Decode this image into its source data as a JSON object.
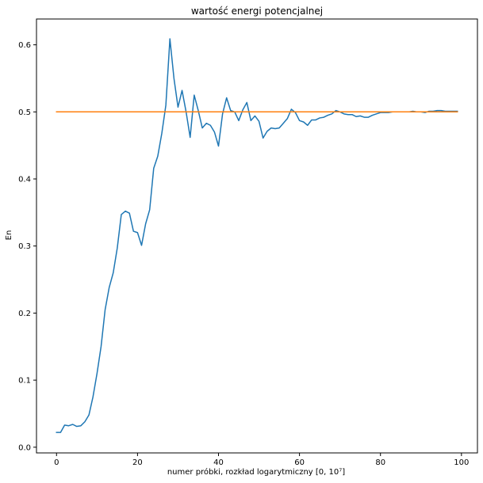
{
  "chart_data": {
    "type": "line",
    "title": "wartość energi potencjalnej",
    "xlabel": "numer próbki, rozkład logarytmiczny [0, 10⁷]",
    "ylabel": "En",
    "xlim": [
      -4.95,
      103.95
    ],
    "ylim": [
      -0.0085,
      0.6385
    ],
    "xticks": [
      0,
      20,
      40,
      60,
      80,
      100
    ],
    "yticks": [
      0.0,
      0.1,
      0.2,
      0.3,
      0.4,
      0.5,
      0.6
    ],
    "grid": false,
    "series": [
      {
        "color": "#1f77b4",
        "x": [
          0,
          1,
          2,
          3,
          4,
          5,
          6,
          7,
          8,
          9,
          10,
          11,
          12,
          13,
          14,
          15,
          16,
          17,
          18,
          19,
          20,
          21,
          22,
          23,
          24,
          25,
          26,
          27,
          28,
          29,
          30,
          31,
          32,
          33,
          34,
          35,
          36,
          37,
          38,
          39,
          40,
          41,
          42,
          43,
          44,
          45,
          46,
          47,
          48,
          49,
          50,
          51,
          52,
          53,
          54,
          55,
          56,
          57,
          58,
          59,
          60,
          61,
          62,
          63,
          64,
          65,
          66,
          67,
          68,
          69,
          70,
          71,
          72,
          73,
          74,
          75,
          76,
          77,
          78,
          79,
          80,
          81,
          82,
          83,
          84,
          85,
          86,
          87,
          88,
          89,
          90,
          91,
          92,
          93,
          94,
          95,
          96,
          97,
          98,
          99
        ],
        "y": [
          0.022,
          0.022,
          0.033,
          0.032,
          0.034,
          0.031,
          0.032,
          0.038,
          0.048,
          0.075,
          0.11,
          0.15,
          0.205,
          0.238,
          0.26,
          0.297,
          0.347,
          0.352,
          0.349,
          0.322,
          0.32,
          0.301,
          0.333,
          0.354,
          0.416,
          0.434,
          0.468,
          0.51,
          0.609,
          0.55,
          0.507,
          0.532,
          0.5,
          0.462,
          0.525,
          0.502,
          0.476,
          0.483,
          0.48,
          0.47,
          0.449,
          0.497,
          0.521,
          0.502,
          0.5,
          0.487,
          0.503,
          0.514,
          0.487,
          0.494,
          0.486,
          0.461,
          0.471,
          0.476,
          0.475,
          0.476,
          0.483,
          0.49,
          0.504,
          0.499,
          0.487,
          0.485,
          0.48,
          0.488,
          0.488,
          0.491,
          0.492,
          0.495,
          0.497,
          0.502,
          0.5,
          0.497,
          0.496,
          0.496,
          0.493,
          0.494,
          0.492,
          0.492,
          0.495,
          0.497,
          0.499,
          0.499,
          0.499,
          0.5,
          0.5,
          0.5,
          0.5,
          0.5,
          0.501,
          0.5,
          0.5,
          0.499,
          0.501,
          0.501,
          0.502,
          0.502,
          0.501,
          0.501,
          0.501,
          0.501
        ]
      },
      {
        "color": "#ff7f0e",
        "x": [
          0,
          99
        ],
        "y": [
          0.5,
          0.5
        ]
      }
    ]
  }
}
